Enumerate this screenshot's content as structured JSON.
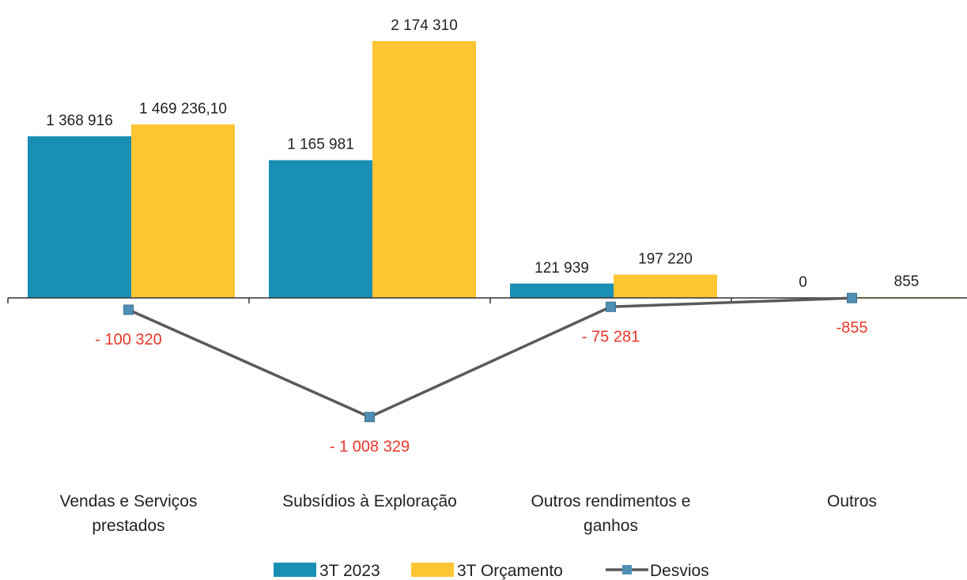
{
  "chart_data": {
    "type": "bar",
    "categories": [
      [
        "Vendas e Serviços",
        "prestados"
      ],
      [
        "Subsídios à Exploração"
      ],
      [
        "Outros rendimentos e",
        "ganhos"
      ],
      [
        "Outros"
      ]
    ],
    "series": [
      {
        "name": "3T 2023",
        "type": "bar",
        "color": "#1a8fb5",
        "values": [
          1368916,
          1165981,
          121939,
          0
        ],
        "labels": [
          "1 368 916",
          "1 165 981",
          "121 939",
          "0"
        ]
      },
      {
        "name": "3T Orçamento",
        "type": "bar",
        "color": "#fec532",
        "values": [
          1469236.1,
          2174310,
          197220,
          855
        ],
        "labels": [
          "1 469 236,10",
          "2 174 310",
          "197 220",
          "855"
        ]
      },
      {
        "name": "Desvios",
        "type": "line",
        "color": "#5a5a5a",
        "marker_color": "#4f8fb5",
        "label_color": "#e8372a",
        "values": [
          -100320,
          -1008329,
          -75281,
          -855
        ],
        "labels": [
          "- 100 320",
          "- 1 008 329",
          "- 75 281",
          "-855"
        ]
      }
    ],
    "legend": {
      "position": "bottom"
    },
    "grid": false
  }
}
